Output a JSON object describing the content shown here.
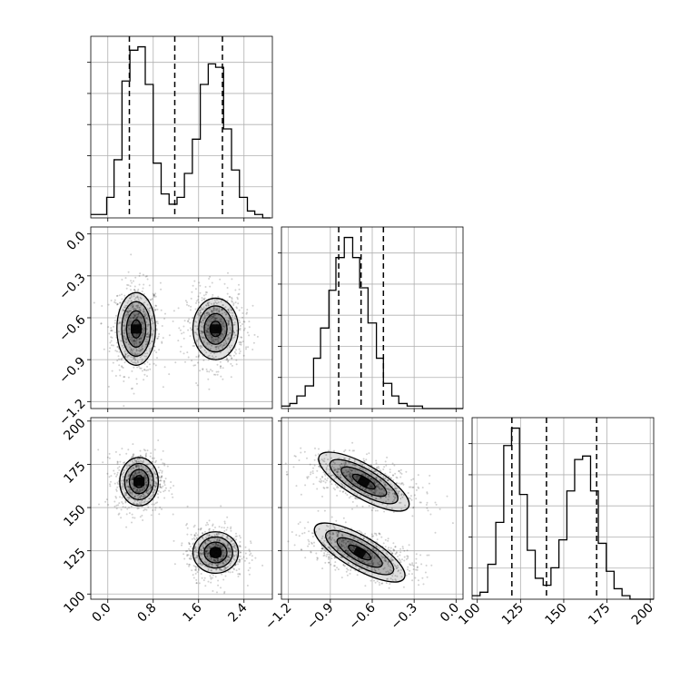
{
  "chart_data": {
    "type": "corner",
    "params": [
      {
        "name": "",
        "range": [
          -0.3,
          2.9
        ],
        "ticks": [
          "0.0",
          "0.8",
          "1.6",
          "2.4"
        ],
        "tick_values": [
          0.0,
          0.8,
          1.6,
          2.4
        ]
      },
      {
        "name": "",
        "range": [
          -1.25,
          0.05
        ],
        "ticks": [
          "0.0",
          "−0.3",
          "−0.6",
          "−0.9",
          "−1.2"
        ],
        "tick_values": [
          0.0,
          -0.3,
          -0.6,
          -0.9,
          -1.2
        ]
      },
      {
        "name": "",
        "range": [
          97,
          202
        ],
        "ticks": [
          "100",
          "125",
          "150",
          "175",
          "200"
        ],
        "tick_values": [
          100,
          125,
          150,
          175,
          200
        ]
      }
    ],
    "quantiles": [
      [
        0.38,
        1.18,
        2.02
      ],
      [
        -0.84,
        -0.68,
        -0.52
      ],
      [
        120,
        140,
        169
      ]
    ],
    "histograms": [
      {
        "bin_edges": [
          -0.3,
          -0.16,
          -0.02,
          0.11,
          0.25,
          0.39,
          0.53,
          0.66,
          0.8,
          0.94,
          1.08,
          1.22,
          1.35,
          1.49,
          1.63,
          1.77,
          1.9,
          2.04,
          2.18,
          2.32,
          2.46,
          2.59,
          2.73,
          2.87
        ],
        "counts": [
          1,
          1,
          6,
          17,
          40,
          49,
          50,
          39,
          16,
          7,
          4,
          6,
          13,
          23,
          39,
          45,
          44,
          26,
          14,
          6,
          2,
          1,
          0
        ]
      },
      {
        "bin_edges": [
          -1.25,
          -1.19,
          -1.14,
          -1.08,
          -1.02,
          -0.97,
          -0.91,
          -0.86,
          -0.8,
          -0.74,
          -0.69,
          -0.63,
          -0.57,
          -0.52,
          -0.46,
          -0.41,
          -0.35,
          -0.29,
          -0.24,
          -0.18,
          -0.12,
          -0.07,
          -0.01,
          0.05
        ],
        "counts": [
          1,
          2,
          5,
          9,
          20,
          32,
          47,
          60,
          68,
          60,
          48,
          34,
          20,
          10,
          5,
          2,
          1,
          1,
          0,
          0,
          0,
          0,
          0
        ]
      },
      {
        "bin_edges": [
          97,
          101.6,
          106.1,
          110.7,
          115.3,
          119.8,
          124.4,
          128.9,
          133.5,
          138.1,
          142.6,
          147.2,
          151.8,
          156.3,
          160.9,
          165.5,
          170,
          174.6,
          179.1,
          183.7,
          188.3,
          192.8,
          197.4,
          202
        ],
        "counts": [
          1,
          2,
          10,
          22,
          44,
          49,
          30,
          14,
          6,
          4,
          9,
          17,
          31,
          40,
          41,
          31,
          16,
          8,
          3,
          1,
          0,
          0,
          0
        ]
      }
    ],
    "clusters_2d": {
      "p1_vs_p0": [
        {
          "center": [
            0.5,
            -0.68
          ],
          "spread": [
            0.17,
            0.13
          ]
        },
        {
          "center": [
            1.9,
            -0.68
          ],
          "spread": [
            0.2,
            0.11
          ]
        }
      ],
      "p2_vs_p0": [
        {
          "center": [
            0.55,
            165
          ],
          "spread": [
            0.17,
            7
          ]
        },
        {
          "center": [
            1.9,
            124
          ],
          "spread": [
            0.2,
            6
          ]
        }
      ],
      "p2_vs_p1": [
        {
          "center": [
            -0.66,
            165
          ],
          "spread": [
            0.16,
            6
          ],
          "rho": -0.55
        },
        {
          "center": [
            -0.69,
            124
          ],
          "spread": [
            0.16,
            6
          ],
          "rho": -0.55
        }
      ]
    },
    "contour_levels_sigma": [
      0.5,
      1.0,
      1.5,
      2.0
    ],
    "grid": true,
    "colors": {
      "density": "#000000",
      "grid": "#b0b0b0",
      "quantile_line": "#000000",
      "line": "#000000"
    }
  }
}
